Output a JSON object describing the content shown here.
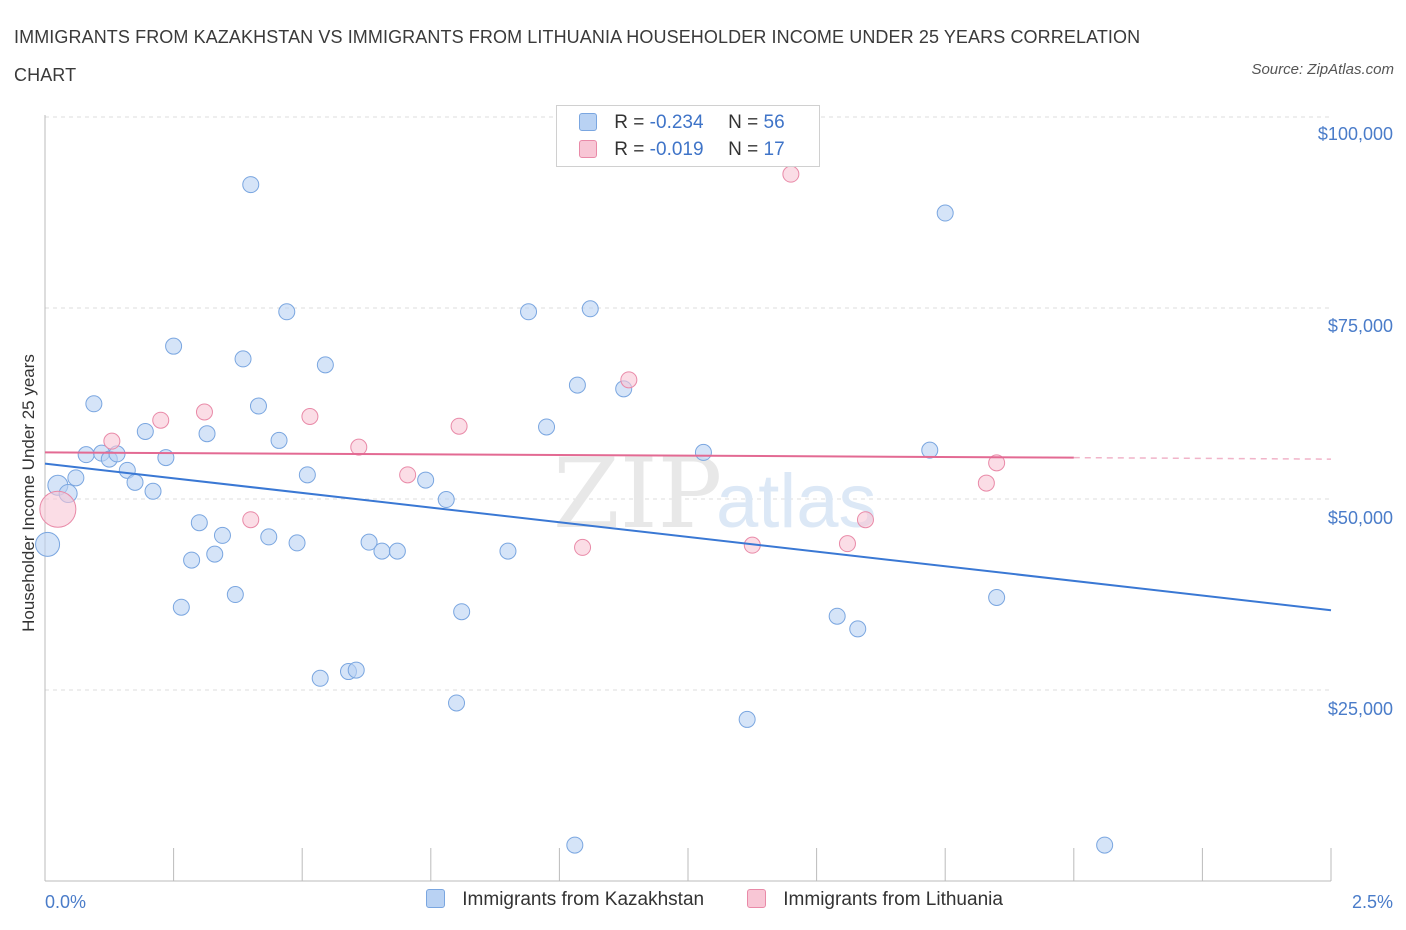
{
  "title": "IMMIGRANTS FROM KAZAKHSTAN VS IMMIGRANTS FROM LITHUANIA HOUSEHOLDER INCOME UNDER 25 YEARS CORRELATION CHART",
  "source": "Source: ZipAtlas.com",
  "watermark": {
    "zip": "ZIP",
    "atlas": "atlas"
  },
  "colors": {
    "blue_fill": "#b9d2f3",
    "blue_stroke": "#7aa6e0",
    "blue_line": "#3a78d4",
    "pink_fill": "#f8c6d5",
    "pink_stroke": "#e98aa8",
    "pink_line": "#e36a93",
    "grid": "#dddddd",
    "axis": "#bbbbbb",
    "tick_text": "#4a7cc9"
  },
  "legend": {
    "rows": [
      {
        "r_label": "R =",
        "r_value": "-0.234",
        "n_label": "N =",
        "n_value": "56"
      },
      {
        "r_label": "R =",
        "r_value": "-0.019",
        "n_label": "N =",
        "n_value": "17"
      }
    ]
  },
  "chart_data": {
    "type": "scatter",
    "title": "IMMIGRANTS FROM KAZAKHSTAN VS IMMIGRANTS FROM LITHUANIA HOUSEHOLDER INCOME UNDER 25 YEARS CORRELATION CHART",
    "xlabel": "",
    "ylabel": "Householder Income Under 25 years",
    "xlim": [
      0,
      2.5
    ],
    "ylim": [
      0,
      100000
    ],
    "x_tick_labels": [
      "0.0%",
      "2.5%"
    ],
    "y_ticks": [
      25000,
      50000,
      75000,
      100000
    ],
    "y_tick_labels": [
      "$25,000",
      "$50,000",
      "$75,000",
      "$100,000"
    ],
    "grid": true,
    "legend_position": "top-center",
    "series": [
      {
        "name": "Immigrants from Kazakhstan",
        "color": "blue",
        "r": -0.234,
        "n": 56,
        "trend": {
          "x": [
            0,
            2.5
          ],
          "y": [
            55800,
            36200
          ]
        },
        "points": [
          [
            0.005,
            45000,
            12
          ],
          [
            0.025,
            52900,
            10
          ],
          [
            0.045,
            51800,
            9
          ],
          [
            0.06,
            53900,
            8
          ],
          [
            0.08,
            57000,
            8
          ],
          [
            0.095,
            63800,
            8
          ],
          [
            0.11,
            57200,
            8
          ],
          [
            0.125,
            56400,
            8
          ],
          [
            0.14,
            57100,
            8
          ],
          [
            0.16,
            54900,
            8
          ],
          [
            0.175,
            53300,
            8
          ],
          [
            0.195,
            60100,
            8
          ],
          [
            0.21,
            52100,
            8
          ],
          [
            0.235,
            56600,
            8
          ],
          [
            0.25,
            71500,
            8
          ],
          [
            0.265,
            36600,
            8
          ],
          [
            0.285,
            42900,
            8
          ],
          [
            0.3,
            47900,
            8
          ],
          [
            0.315,
            59800,
            8
          ],
          [
            0.33,
            43700,
            8
          ],
          [
            0.345,
            46200,
            8
          ],
          [
            0.37,
            38300,
            8
          ],
          [
            0.385,
            69800,
            8
          ],
          [
            0.4,
            93100,
            8
          ],
          [
            0.415,
            63500,
            8
          ],
          [
            0.435,
            46000,
            8
          ],
          [
            0.455,
            58900,
            8
          ],
          [
            0.47,
            76100,
            8
          ],
          [
            0.49,
            45200,
            8
          ],
          [
            0.51,
            54300,
            8
          ],
          [
            0.535,
            27100,
            8
          ],
          [
            0.545,
            69000,
            8
          ],
          [
            0.59,
            28000,
            8
          ],
          [
            0.605,
            28200,
            8
          ],
          [
            0.63,
            45300,
            8
          ],
          [
            0.655,
            44100,
            8
          ],
          [
            0.685,
            44100,
            8
          ],
          [
            0.74,
            53600,
            8
          ],
          [
            0.78,
            51000,
            8
          ],
          [
            0.8,
            23800,
            8
          ],
          [
            0.81,
            36000,
            8
          ],
          [
            0.9,
            44100,
            8
          ],
          [
            0.94,
            76100,
            8
          ],
          [
            0.975,
            60700,
            8
          ],
          [
            1.035,
            66300,
            8
          ],
          [
            1.06,
            76500,
            8
          ],
          [
            1.03,
            4800,
            8
          ],
          [
            1.125,
            65800,
            8
          ],
          [
            1.28,
            57300,
            8
          ],
          [
            1.365,
            21600,
            8
          ],
          [
            1.54,
            35400,
            8
          ],
          [
            1.58,
            33700,
            8
          ],
          [
            1.72,
            57600,
            8
          ],
          [
            1.75,
            89300,
            8
          ],
          [
            1.85,
            37900,
            8
          ],
          [
            2.06,
            4800,
            8
          ]
        ]
      },
      {
        "name": "Immigrants from Lithuania",
        "color": "pink",
        "r": -0.019,
        "n": 17,
        "trend": {
          "x": [
            0,
            2.0
          ],
          "y": [
            57300,
            56600
          ]
        },
        "trend_dashed": {
          "x": [
            2.0,
            2.5
          ],
          "y": [
            56600,
            56400
          ]
        },
        "points": [
          [
            0.025,
            49700,
            18
          ],
          [
            0.13,
            58800,
            8
          ],
          [
            0.225,
            61600,
            8
          ],
          [
            0.31,
            62700,
            8
          ],
          [
            0.4,
            48300,
            8
          ],
          [
            0.515,
            62100,
            8
          ],
          [
            0.61,
            58000,
            8
          ],
          [
            0.705,
            54300,
            8
          ],
          [
            0.805,
            60800,
            8
          ],
          [
            1.045,
            44600,
            8
          ],
          [
            1.135,
            67000,
            8
          ],
          [
            1.375,
            44900,
            8
          ],
          [
            1.56,
            45100,
            8
          ],
          [
            1.595,
            48300,
            8
          ],
          [
            1.83,
            53200,
            8
          ],
          [
            1.85,
            55900,
            8
          ],
          [
            1.45,
            94500,
            8
          ]
        ]
      }
    ]
  }
}
